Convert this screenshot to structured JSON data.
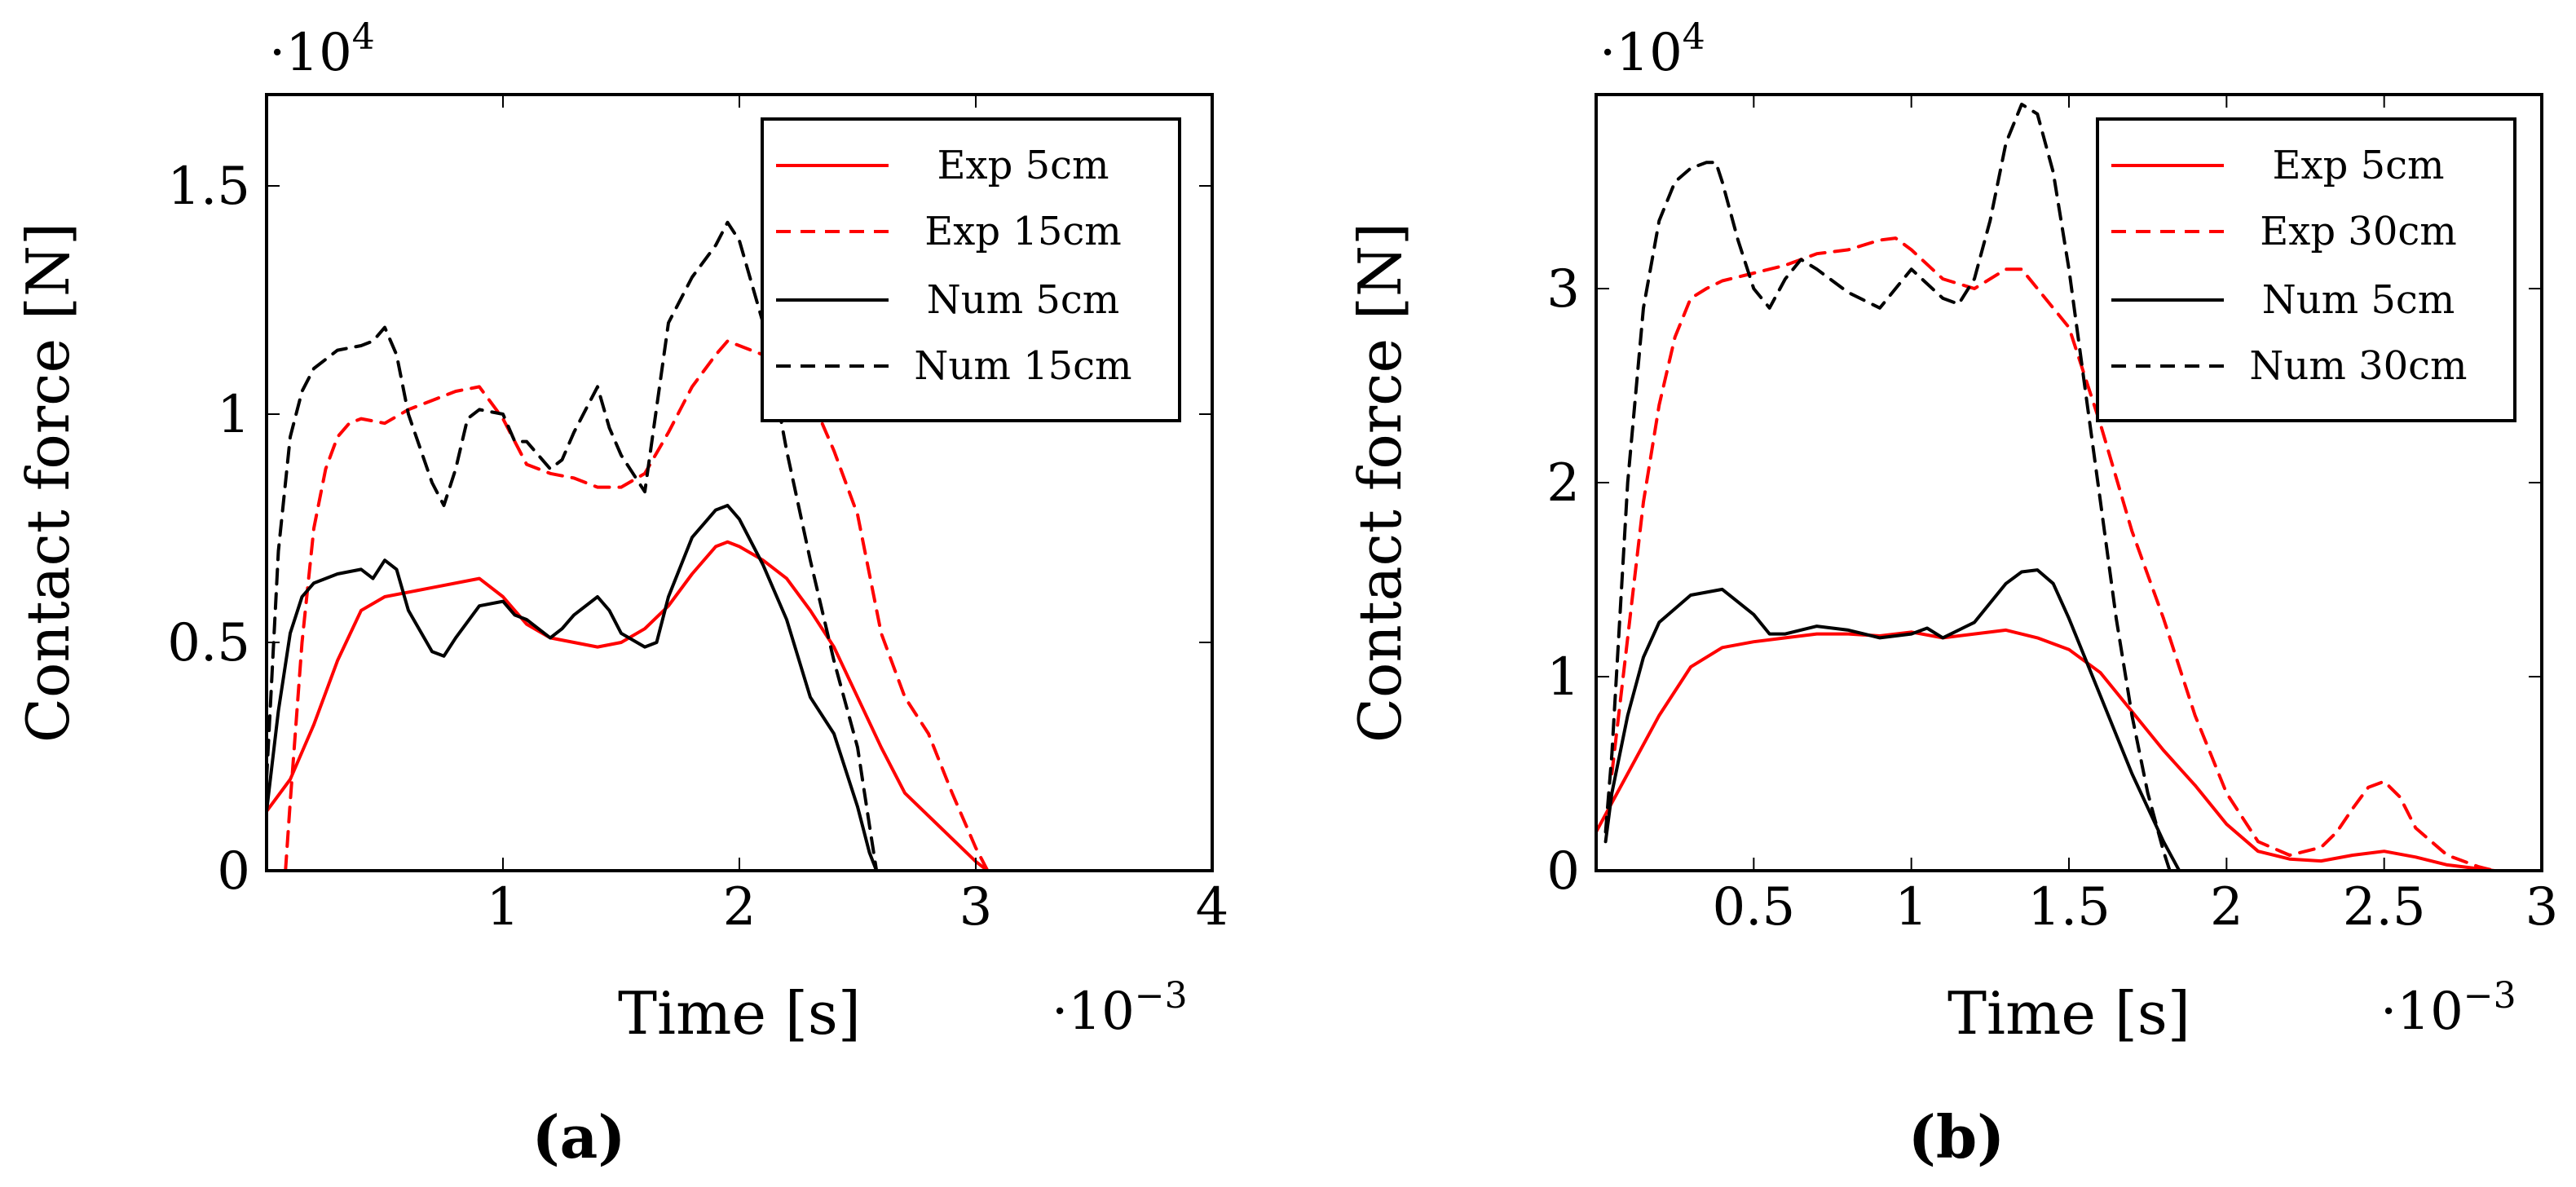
{
  "chart_data": [
    {
      "type": "line",
      "panel_label": "(a)",
      "xlabel": "Time [s]",
      "ylabel": "Contact force [N]",
      "x_exponent_label": "·10",
      "x_exponent_power": "−3",
      "y_exponent_label": "·10",
      "y_exponent_power": "4",
      "xlim": [
        0,
        4
      ],
      "ylim": [
        0,
        1.7
      ],
      "xticks": [
        {
          "value": 1,
          "label": "1"
        },
        {
          "value": 2,
          "label": "2"
        },
        {
          "value": 3,
          "label": "3"
        },
        {
          "value": 4,
          "label": "4"
        }
      ],
      "yticks": [
        {
          "value": 0,
          "label": "0"
        },
        {
          "value": 0.5,
          "label": "0.5"
        },
        {
          "value": 1,
          "label": "1"
        },
        {
          "value": 1.5,
          "label": "1.5"
        }
      ],
      "legend_position": "top-right",
      "series": [
        {
          "name": "Exp 5cm",
          "color": "#ff0000",
          "dash": "solid",
          "x": [
            0,
            0.1,
            0.2,
            0.3,
            0.4,
            0.5,
            0.7,
            0.9,
            1.0,
            1.1,
            1.2,
            1.3,
            1.4,
            1.5,
            1.6,
            1.7,
            1.8,
            1.9,
            1.95,
            2.0,
            2.1,
            2.2,
            2.3,
            2.4,
            2.5,
            2.6,
            2.7,
            2.8,
            2.9,
            3.0,
            3.05
          ],
          "y": [
            0.13,
            0.2,
            0.32,
            0.46,
            0.57,
            0.6,
            0.62,
            0.64,
            0.6,
            0.54,
            0.51,
            0.5,
            0.49,
            0.5,
            0.53,
            0.58,
            0.65,
            0.71,
            0.72,
            0.71,
            0.68,
            0.64,
            0.57,
            0.49,
            0.38,
            0.27,
            0.17,
            0.12,
            0.07,
            0.02,
            0
          ]
        },
        {
          "name": "Exp 15cm",
          "color": "#ff0000",
          "dash": "dashed",
          "x": [
            0.08,
            0.1,
            0.15,
            0.2,
            0.25,
            0.3,
            0.35,
            0.4,
            0.5,
            0.6,
            0.7,
            0.8,
            0.9,
            1.0,
            1.1,
            1.2,
            1.3,
            1.4,
            1.5,
            1.6,
            1.7,
            1.8,
            1.9,
            1.95,
            2.0,
            2.1,
            2.2,
            2.3,
            2.4,
            2.5,
            2.6,
            2.7,
            2.8,
            2.9,
            3.0,
            3.05
          ],
          "y": [
            0,
            0.15,
            0.5,
            0.75,
            0.88,
            0.95,
            0.98,
            0.99,
            0.98,
            1.01,
            1.03,
            1.05,
            1.06,
            0.99,
            0.89,
            0.87,
            0.86,
            0.84,
            0.84,
            0.87,
            0.96,
            1.06,
            1.13,
            1.16,
            1.15,
            1.13,
            1.1,
            1.04,
            0.92,
            0.78,
            0.52,
            0.38,
            0.3,
            0.17,
            0.05,
            0
          ]
        },
        {
          "name": "Num 5cm",
          "color": "#000000",
          "dash": "solid",
          "x": [
            0,
            0.05,
            0.1,
            0.15,
            0.2,
            0.3,
            0.4,
            0.45,
            0.5,
            0.55,
            0.6,
            0.7,
            0.75,
            0.8,
            0.9,
            1.0,
            1.05,
            1.1,
            1.2,
            1.25,
            1.3,
            1.4,
            1.45,
            1.5,
            1.6,
            1.65,
            1.7,
            1.8,
            1.9,
            1.95,
            2.0,
            2.1,
            2.2,
            2.3,
            2.4,
            2.5,
            2.55,
            2.58
          ],
          "y": [
            0.13,
            0.35,
            0.52,
            0.6,
            0.63,
            0.65,
            0.66,
            0.64,
            0.68,
            0.66,
            0.57,
            0.48,
            0.47,
            0.51,
            0.58,
            0.59,
            0.56,
            0.55,
            0.51,
            0.53,
            0.56,
            0.6,
            0.57,
            0.52,
            0.49,
            0.5,
            0.6,
            0.73,
            0.79,
            0.8,
            0.77,
            0.67,
            0.55,
            0.38,
            0.3,
            0.14,
            0.04,
            0
          ]
        },
        {
          "name": "Num 15cm",
          "color": "#000000",
          "dash": "dashed",
          "x": [
            0,
            0.05,
            0.1,
            0.15,
            0.2,
            0.3,
            0.4,
            0.45,
            0.5,
            0.55,
            0.6,
            0.7,
            0.75,
            0.8,
            0.85,
            0.9,
            1.0,
            1.05,
            1.1,
            1.2,
            1.25,
            1.3,
            1.4,
            1.45,
            1.5,
            1.6,
            1.7,
            1.8,
            1.9,
            1.95,
            2.0,
            2.1,
            2.2,
            2.3,
            2.4,
            2.5,
            2.55,
            2.58
          ],
          "y": [
            0.2,
            0.7,
            0.95,
            1.05,
            1.1,
            1.14,
            1.15,
            1.16,
            1.19,
            1.13,
            1.0,
            0.85,
            0.8,
            0.88,
            0.99,
            1.01,
            1.0,
            0.94,
            0.94,
            0.88,
            0.9,
            0.96,
            1.06,
            0.97,
            0.91,
            0.83,
            1.2,
            1.3,
            1.37,
            1.42,
            1.38,
            1.2,
            0.92,
            0.68,
            0.46,
            0.27,
            0.1,
            0
          ]
        }
      ]
    },
    {
      "type": "line",
      "panel_label": "(b)",
      "xlabel": "Time [s]",
      "ylabel": "Contact force [N]",
      "x_exponent_label": "·10",
      "x_exponent_power": "−3",
      "y_exponent_label": "·10",
      "y_exponent_power": "4",
      "xlim": [
        0,
        3
      ],
      "ylim": [
        0,
        4
      ],
      "xticks": [
        {
          "value": 0.5,
          "label": "0.5"
        },
        {
          "value": 1,
          "label": "1"
        },
        {
          "value": 1.5,
          "label": "1.5"
        },
        {
          "value": 2,
          "label": "2"
        },
        {
          "value": 2.5,
          "label": "2.5"
        },
        {
          "value": 3,
          "label": "3"
        }
      ],
      "yticks": [
        {
          "value": 0,
          "label": "0"
        },
        {
          "value": 1,
          "label": "1"
        },
        {
          "value": 2,
          "label": "2"
        },
        {
          "value": 3,
          "label": "3"
        }
      ],
      "legend_position": "top-right",
      "series": [
        {
          "name": "Exp 5cm",
          "color": "#ff0000",
          "dash": "solid",
          "x": [
            0,
            0.05,
            0.1,
            0.2,
            0.3,
            0.4,
            0.5,
            0.6,
            0.7,
            0.8,
            0.9,
            1.0,
            1.1,
            1.2,
            1.3,
            1.4,
            1.5,
            1.6,
            1.7,
            1.8,
            1.9,
            2.0,
            2.1,
            2.2,
            2.3,
            2.4,
            2.5,
            2.6,
            2.7,
            2.8,
            2.85
          ],
          "y": [
            0.2,
            0.35,
            0.5,
            0.8,
            1.05,
            1.15,
            1.18,
            1.2,
            1.22,
            1.22,
            1.21,
            1.23,
            1.2,
            1.22,
            1.24,
            1.2,
            1.14,
            1.02,
            0.82,
            0.62,
            0.44,
            0.24,
            0.1,
            0.06,
            0.05,
            0.08,
            0.1,
            0.07,
            0.03,
            0.01,
            0
          ]
        },
        {
          "name": "Exp 30cm",
          "color": "#ff0000",
          "dash": "dashed",
          "x": [
            0.05,
            0.1,
            0.15,
            0.2,
            0.25,
            0.3,
            0.35,
            0.4,
            0.5,
            0.6,
            0.7,
            0.8,
            0.9,
            0.95,
            1.0,
            1.1,
            1.2,
            1.3,
            1.35,
            1.4,
            1.5,
            1.6,
            1.7,
            1.8,
            1.9,
            2.0,
            2.1,
            2.2,
            2.3,
            2.35,
            2.4,
            2.45,
            2.5,
            2.55,
            2.6,
            2.7,
            2.8,
            2.85
          ],
          "y": [
            0.5,
            1.2,
            1.9,
            2.4,
            2.75,
            2.95,
            3.0,
            3.04,
            3.08,
            3.12,
            3.18,
            3.2,
            3.25,
            3.26,
            3.2,
            3.05,
            3.0,
            3.1,
            3.1,
            3.0,
            2.8,
            2.3,
            1.75,
            1.3,
            0.8,
            0.4,
            0.15,
            0.08,
            0.12,
            0.2,
            0.32,
            0.43,
            0.46,
            0.38,
            0.22,
            0.08,
            0.02,
            0
          ]
        },
        {
          "name": "Num 5cm",
          "color": "#000000",
          "dash": "solid",
          "x": [
            0.03,
            0.05,
            0.1,
            0.15,
            0.2,
            0.3,
            0.4,
            0.5,
            0.55,
            0.6,
            0.7,
            0.8,
            0.9,
            1.0,
            1.05,
            1.1,
            1.2,
            1.3,
            1.35,
            1.4,
            1.45,
            1.5,
            1.6,
            1.7,
            1.8,
            1.85
          ],
          "y": [
            0.15,
            0.4,
            0.8,
            1.1,
            1.28,
            1.42,
            1.45,
            1.32,
            1.22,
            1.22,
            1.26,
            1.24,
            1.2,
            1.22,
            1.25,
            1.2,
            1.28,
            1.48,
            1.54,
            1.55,
            1.48,
            1.3,
            0.9,
            0.5,
            0.15,
            0
          ]
        },
        {
          "name": "Num 30cm",
          "color": "#000000",
          "dash": "dashed",
          "x": [
            0.03,
            0.05,
            0.1,
            0.15,
            0.2,
            0.25,
            0.3,
            0.35,
            0.38,
            0.4,
            0.45,
            0.5,
            0.55,
            0.6,
            0.65,
            0.7,
            0.8,
            0.9,
            1.0,
            1.1,
            1.15,
            1.2,
            1.25,
            1.3,
            1.35,
            1.4,
            1.45,
            1.5,
            1.55,
            1.6,
            1.65,
            1.7,
            1.75,
            1.8,
            1.82
          ],
          "y": [
            0.2,
            0.6,
            2.0,
            2.9,
            3.35,
            3.55,
            3.62,
            3.65,
            3.65,
            3.55,
            3.25,
            3.0,
            2.9,
            3.05,
            3.15,
            3.1,
            2.98,
            2.9,
            3.1,
            2.95,
            2.92,
            3.05,
            3.35,
            3.75,
            3.95,
            3.9,
            3.6,
            3.1,
            2.5,
            1.9,
            1.3,
            0.8,
            0.4,
            0.1,
            0
          ]
        }
      ]
    }
  ]
}
